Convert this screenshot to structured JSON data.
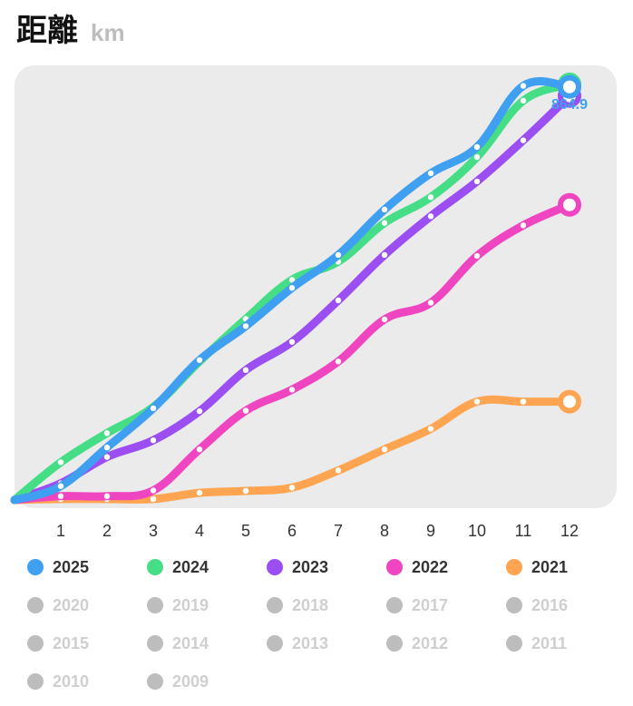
{
  "header": {
    "title": "距離",
    "unit": "km"
  },
  "chart_data": {
    "type": "line",
    "title": "距離",
    "ylabel": "km",
    "categories": [
      "1",
      "2",
      "3",
      "4",
      "5",
      "6",
      "7",
      "8",
      "9",
      "10",
      "11",
      "12"
    ],
    "ylim": [
      0,
      910
    ],
    "grid": false,
    "legend_placement": "bottom",
    "end_label": {
      "series": "2025",
      "text": "864.9"
    },
    "series": [
      {
        "name": "2021",
        "color": "#ffa552",
        "values": [
          2,
          2,
          2,
          15,
          19,
          26,
          62,
          106,
          149,
          206,
          206,
          206
        ]
      },
      {
        "name": "2022",
        "color": "#ef45c0",
        "values": [
          8,
          8,
          20,
          106,
          187,
          231,
          290,
          378,
          413,
          511,
          575,
          618
        ]
      },
      {
        "name": "2023",
        "color": "#9b4ef2",
        "values": [
          35,
          90,
          125,
          186,
          272,
          331,
          418,
          513,
          594,
          667,
          753,
          846
        ]
      },
      {
        "name": "2024",
        "color": "#45dd85",
        "values": [
          79,
          140,
          195,
          290,
          379,
          461,
          499,
          580,
          634,
          718,
          836,
          870
        ]
      },
      {
        "name": "2025",
        "color": "#3f9ff0",
        "values": [
          29,
          110,
          192,
          293,
          364,
          444,
          513,
          608,
          684,
          739,
          867,
          864.9
        ]
      }
    ]
  },
  "legend": [
    {
      "label": "2025",
      "active": true,
      "color": "#3f9ff0"
    },
    {
      "label": "2024",
      "active": true,
      "color": "#45dd85"
    },
    {
      "label": "2023",
      "active": true,
      "color": "#9b4ef2"
    },
    {
      "label": "2022",
      "active": true,
      "color": "#ef45c0"
    },
    {
      "label": "2021",
      "active": true,
      "color": "#ffa552"
    },
    {
      "label": "2020",
      "active": false,
      "color": "#bdbdbd"
    },
    {
      "label": "2019",
      "active": false,
      "color": "#bdbdbd"
    },
    {
      "label": "2018",
      "active": false,
      "color": "#bdbdbd"
    },
    {
      "label": "2017",
      "active": false,
      "color": "#bdbdbd"
    },
    {
      "label": "2016",
      "active": false,
      "color": "#bdbdbd"
    },
    {
      "label": "2015",
      "active": false,
      "color": "#bdbdbd"
    },
    {
      "label": "2014",
      "active": false,
      "color": "#bdbdbd"
    },
    {
      "label": "2013",
      "active": false,
      "color": "#bdbdbd"
    },
    {
      "label": "2012",
      "active": false,
      "color": "#bdbdbd"
    },
    {
      "label": "2011",
      "active": false,
      "color": "#bdbdbd"
    },
    {
      "label": "2010",
      "active": false,
      "color": "#bdbdbd"
    },
    {
      "label": "2009",
      "active": false,
      "color": "#bdbdbd"
    }
  ]
}
